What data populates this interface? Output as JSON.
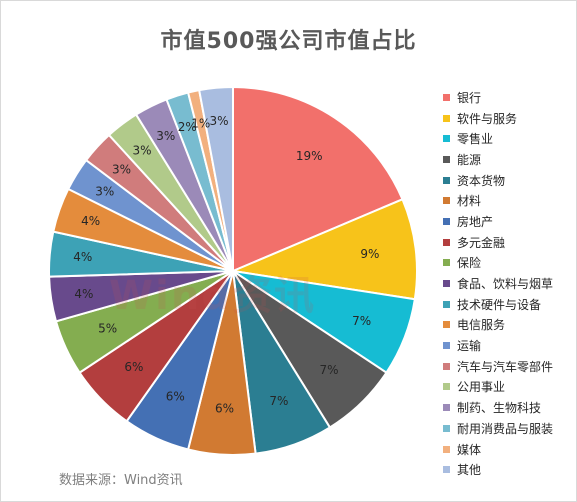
{
  "source_note": "数据来源：Wind资讯",
  "watermark": "Wind资讯",
  "chart_data": {
    "type": "pie",
    "title": "市值500强公司市值占比",
    "legend_position": "right",
    "slices": [
      {
        "name": "银行",
        "value": 19,
        "label": "19%",
        "color": "#f2706b"
      },
      {
        "name": "软件与服务",
        "value": 9,
        "label": "9%",
        "color": "#f7c31a"
      },
      {
        "name": "零售业",
        "value": 7,
        "label": "7%",
        "color": "#16bcd3"
      },
      {
        "name": "能源",
        "value": 7,
        "label": "7%",
        "color": "#595959"
      },
      {
        "name": "资本货物",
        "value": 7,
        "label": "7%",
        "color": "#2b7e92"
      },
      {
        "name": "材料",
        "value": 6,
        "label": "6%",
        "color": "#d17a32"
      },
      {
        "name": "房地产",
        "value": 6,
        "label": "6%",
        "color": "#4470b4"
      },
      {
        "name": "多元金融",
        "value": 6,
        "label": "6%",
        "color": "#b33e3e"
      },
      {
        "name": "保险",
        "value": 5,
        "label": "5%",
        "color": "#84ad50"
      },
      {
        "name": "食品、饮料与烟草",
        "value": 4,
        "label": "4%",
        "color": "#684a8c"
      },
      {
        "name": "技术硬件与设备",
        "value": 4,
        "label": "4%",
        "color": "#3da2b6"
      },
      {
        "name": "电信服务",
        "value": 4,
        "label": "4%",
        "color": "#e48c3c"
      },
      {
        "name": "运输",
        "value": 3,
        "label": "3%",
        "color": "#6f93cf"
      },
      {
        "name": "汽车与汽车零部件",
        "value": 3,
        "label": "3%",
        "color": "#d07c7c"
      },
      {
        "name": "公用事业",
        "value": 3,
        "label": "3%",
        "color": "#b1ca8a"
      },
      {
        "name": "制药、生物科技",
        "value": 3,
        "label": "3%",
        "color": "#9b8ab8"
      },
      {
        "name": "耐用消费品与服装",
        "value": 2,
        "label": "2%",
        "color": "#78bcd0"
      },
      {
        "name": "媒体",
        "value": 1,
        "label": "1%",
        "color": "#f2b07e"
      },
      {
        "name": "其他",
        "value": 3,
        "label": "3%",
        "color": "#a9bde0"
      }
    ]
  }
}
